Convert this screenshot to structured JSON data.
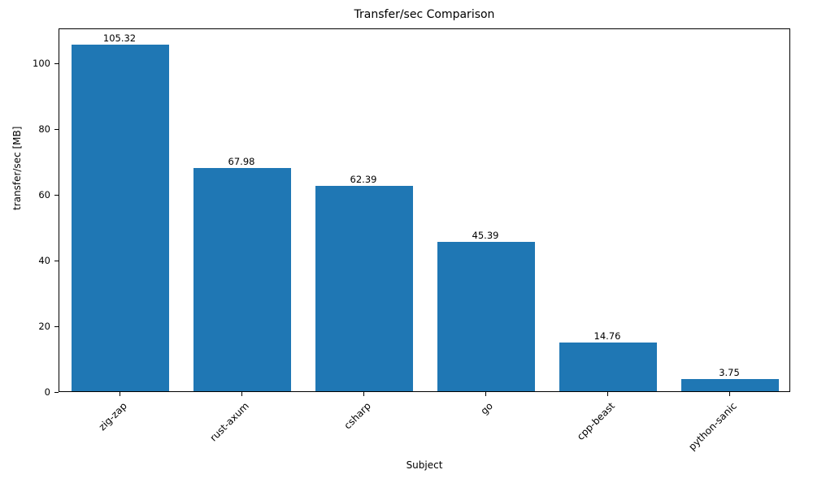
{
  "chart_data": {
    "type": "bar",
    "title": "Transfer/sec Comparison",
    "xlabel": "Subject",
    "ylabel": "transfer/sec [MB]",
    "categories": [
      "zig-zap",
      "rust-axum",
      "csharp",
      "go",
      "cpp-beast",
      "python-sanic"
    ],
    "values": [
      105.32,
      67.98,
      62.39,
      45.39,
      14.76,
      3.75
    ],
    "value_labels": [
      "105.32",
      "67.98",
      "62.39",
      "45.39",
      "14.76",
      "3.75"
    ],
    "y_ticks": [
      0,
      20,
      40,
      60,
      80,
      100
    ],
    "ylim": [
      0,
      110.59
    ],
    "bar_color": "#1f77b4",
    "grid": false,
    "legend": "none"
  }
}
